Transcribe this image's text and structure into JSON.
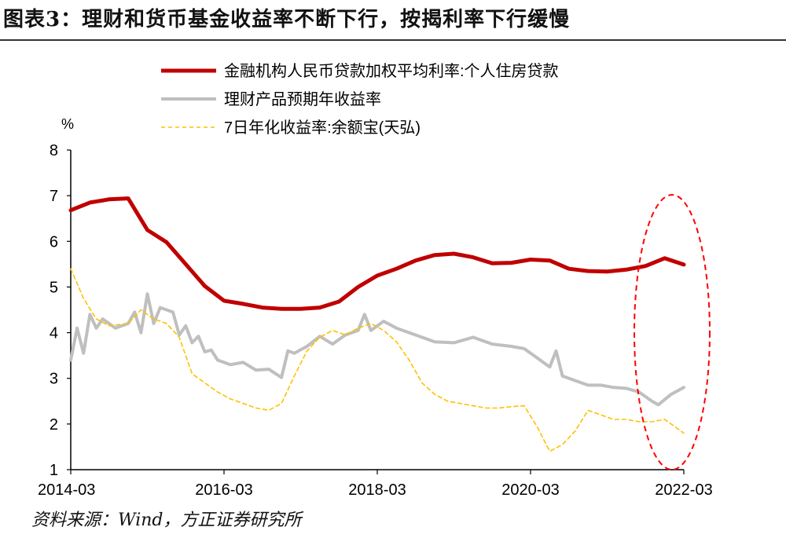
{
  "figure": {
    "title": "图表3：理财和货币基金收益率不断下行，按揭利率下行缓慢",
    "source": "资料来源：Wind，方正证券研究所"
  },
  "colors": {
    "mortgage": "#c00000",
    "wealth": "#bfbfbf",
    "yuebao": "#ffc000",
    "highlight": "#ff0000",
    "axis": "#000000"
  },
  "chart_data": {
    "type": "line",
    "ylabel": "%",
    "ylim": [
      1,
      8
    ],
    "yticks": [
      "1",
      "2",
      "3",
      "4",
      "5",
      "6",
      "7",
      "8"
    ],
    "xlim": [
      "2014-03",
      "2022-03"
    ],
    "xticks": [
      "2014-03",
      "2016-03",
      "2018-03",
      "2020-03",
      "2022-03"
    ],
    "legend_position": "top",
    "annotation": "red dashed ellipse highlighting 2021-09 to 2022-03",
    "series": [
      {
        "name": "金融机构人民币贷款加权平均利率:个人住房贷款",
        "key": "mortgage",
        "style": "solid-thick",
        "points": [
          [
            "2014-03",
            6.68
          ],
          [
            "2014-06",
            6.85
          ],
          [
            "2014-09",
            6.92
          ],
          [
            "2014-12",
            6.94
          ],
          [
            "2015-03",
            6.25
          ],
          [
            "2015-06",
            5.98
          ],
          [
            "2015-09",
            5.5
          ],
          [
            "2015-12",
            5.02
          ],
          [
            "2016-03",
            4.7
          ],
          [
            "2016-06",
            4.63
          ],
          [
            "2016-09",
            4.55
          ],
          [
            "2016-12",
            4.52
          ],
          [
            "2017-03",
            4.52
          ],
          [
            "2017-06",
            4.55
          ],
          [
            "2017-09",
            4.68
          ],
          [
            "2017-12",
            5.0
          ],
          [
            "2018-03",
            5.25
          ],
          [
            "2018-06",
            5.4
          ],
          [
            "2018-09",
            5.58
          ],
          [
            "2018-12",
            5.7
          ],
          [
            "2019-03",
            5.73
          ],
          [
            "2019-06",
            5.65
          ],
          [
            "2019-09",
            5.52
          ],
          [
            "2019-12",
            5.53
          ],
          [
            "2020-03",
            5.6
          ],
          [
            "2020-06",
            5.58
          ],
          [
            "2020-09",
            5.4
          ],
          [
            "2020-12",
            5.35
          ],
          [
            "2021-03",
            5.34
          ],
          [
            "2021-06",
            5.38
          ],
          [
            "2021-09",
            5.46
          ],
          [
            "2021-12",
            5.63
          ],
          [
            "2022-03",
            5.49
          ]
        ]
      },
      {
        "name": "理财产品预期年收益率",
        "key": "wealth",
        "style": "solid-medium",
        "points": [
          [
            "2014-03",
            3.4
          ],
          [
            "2014-04",
            4.1
          ],
          [
            "2014-05",
            3.55
          ],
          [
            "2014-06",
            4.4
          ],
          [
            "2014-07",
            4.1
          ],
          [
            "2014-08",
            4.3
          ],
          [
            "2014-10",
            4.1
          ],
          [
            "2014-12",
            4.2
          ],
          [
            "2015-01",
            4.45
          ],
          [
            "2015-02",
            4.0
          ],
          [
            "2015-03",
            4.85
          ],
          [
            "2015-04",
            4.2
          ],
          [
            "2015-05",
            4.55
          ],
          [
            "2015-07",
            4.45
          ],
          [
            "2015-08",
            3.95
          ],
          [
            "2015-09",
            4.15
          ],
          [
            "2015-10",
            3.78
          ],
          [
            "2015-11",
            3.92
          ],
          [
            "2015-12",
            3.58
          ],
          [
            "2016-01",
            3.62
          ],
          [
            "2016-02",
            3.4
          ],
          [
            "2016-04",
            3.3
          ],
          [
            "2016-06",
            3.35
          ],
          [
            "2016-08",
            3.18
          ],
          [
            "2016-10",
            3.2
          ],
          [
            "2016-12",
            3.02
          ],
          [
            "2017-01",
            3.6
          ],
          [
            "2017-02",
            3.55
          ],
          [
            "2017-04",
            3.7
          ],
          [
            "2017-06",
            3.92
          ],
          [
            "2017-08",
            3.75
          ],
          [
            "2017-10",
            3.95
          ],
          [
            "2017-12",
            4.05
          ],
          [
            "2018-01",
            4.4
          ],
          [
            "2018-02",
            4.05
          ],
          [
            "2018-04",
            4.25
          ],
          [
            "2018-06",
            4.1
          ],
          [
            "2018-09",
            3.95
          ],
          [
            "2018-12",
            3.8
          ],
          [
            "2019-03",
            3.78
          ],
          [
            "2019-06",
            3.9
          ],
          [
            "2019-09",
            3.75
          ],
          [
            "2019-12",
            3.7
          ],
          [
            "2020-02",
            3.65
          ],
          [
            "2020-04",
            3.45
          ],
          [
            "2020-06",
            3.25
          ],
          [
            "2020-07",
            3.6
          ],
          [
            "2020-08",
            3.05
          ],
          [
            "2020-10",
            2.95
          ],
          [
            "2020-12",
            2.85
          ],
          [
            "2021-02",
            2.85
          ],
          [
            "2021-04",
            2.8
          ],
          [
            "2021-06",
            2.78
          ],
          [
            "2021-08",
            2.7
          ],
          [
            "2021-10",
            2.5
          ],
          [
            "2021-11",
            2.42
          ],
          [
            "2022-01",
            2.65
          ],
          [
            "2022-03",
            2.8
          ]
        ]
      },
      {
        "name": "7日年化收益率:余额宝(天弘)",
        "key": "yuebao",
        "style": "dashed",
        "points": [
          [
            "2014-03",
            5.4
          ],
          [
            "2014-05",
            4.75
          ],
          [
            "2014-07",
            4.3
          ],
          [
            "2014-09",
            4.15
          ],
          [
            "2014-12",
            4.2
          ],
          [
            "2015-02",
            4.5
          ],
          [
            "2015-04",
            4.3
          ],
          [
            "2015-06",
            4.2
          ],
          [
            "2015-08",
            3.9
          ],
          [
            "2015-10",
            3.1
          ],
          [
            "2015-12",
            2.9
          ],
          [
            "2016-02",
            2.7
          ],
          [
            "2016-04",
            2.55
          ],
          [
            "2016-06",
            2.45
          ],
          [
            "2016-08",
            2.35
          ],
          [
            "2016-10",
            2.3
          ],
          [
            "2016-12",
            2.45
          ],
          [
            "2017-02",
            3.05
          ],
          [
            "2017-04",
            3.6
          ],
          [
            "2017-06",
            3.9
          ],
          [
            "2017-08",
            4.05
          ],
          [
            "2017-10",
            3.95
          ],
          [
            "2017-12",
            4.1
          ],
          [
            "2018-02",
            4.2
          ],
          [
            "2018-04",
            4.05
          ],
          [
            "2018-06",
            3.8
          ],
          [
            "2018-08",
            3.4
          ],
          [
            "2018-10",
            2.9
          ],
          [
            "2018-12",
            2.65
          ],
          [
            "2019-02",
            2.5
          ],
          [
            "2019-04",
            2.45
          ],
          [
            "2019-06",
            2.4
          ],
          [
            "2019-08",
            2.35
          ],
          [
            "2019-10",
            2.35
          ],
          [
            "2019-12",
            2.38
          ],
          [
            "2020-02",
            2.4
          ],
          [
            "2020-04",
            1.95
          ],
          [
            "2020-06",
            1.4
          ],
          [
            "2020-08",
            1.55
          ],
          [
            "2020-10",
            1.85
          ],
          [
            "2020-12",
            2.3
          ],
          [
            "2021-02",
            2.2
          ],
          [
            "2021-04",
            2.1
          ],
          [
            "2021-06",
            2.1
          ],
          [
            "2021-08",
            2.05
          ],
          [
            "2021-10",
            2.05
          ],
          [
            "2021-12",
            2.1
          ],
          [
            "2022-03",
            1.8
          ]
        ]
      }
    ]
  }
}
